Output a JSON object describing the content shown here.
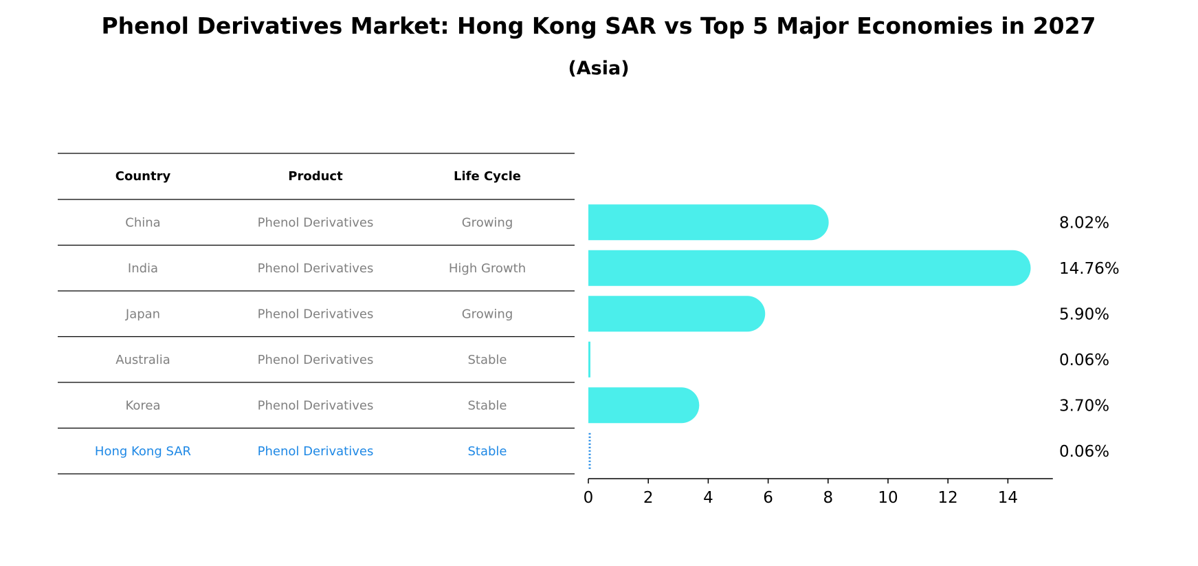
{
  "chart_data": {
    "type": "bar",
    "orientation": "horizontal",
    "title": "Phenol Derivatives Market: Hong Kong SAR vs Top 5 Major Economies in 2027",
    "subtitle": "(Asia)",
    "table": {
      "headers": [
        "Country",
        "Product",
        "Life Cycle"
      ],
      "rows": [
        {
          "country": "China",
          "product": "Phenol Derivatives",
          "life_cycle": "Growing",
          "highlight": false
        },
        {
          "country": "India",
          "product": "Phenol Derivatives",
          "life_cycle": "High Growth",
          "highlight": false
        },
        {
          "country": "Japan",
          "product": "Phenol Derivatives",
          "life_cycle": "Growing",
          "highlight": false
        },
        {
          "country": "Australia",
          "product": "Phenol Derivatives",
          "life_cycle": "Stable",
          "highlight": false
        },
        {
          "country": "Korea",
          "product": "Phenol Derivatives",
          "life_cycle": "Stable",
          "highlight": false
        },
        {
          "country": "Hong Kong SAR",
          "product": "Phenol Derivatives",
          "life_cycle": "Stable",
          "highlight": true
        }
      ]
    },
    "values": [
      8.02,
      14.76,
      5.9,
      0.06,
      3.7,
      0.06
    ],
    "value_labels": [
      "8.02%",
      "14.76%",
      "5.90%",
      "0.06%",
      "3.70%",
      "0.06%"
    ],
    "xlim": [
      0,
      15.5
    ],
    "xticks": [
      0,
      2,
      4,
      6,
      8,
      10,
      12,
      14
    ],
    "grid": false
  },
  "colors": {
    "bar": "#4beeeb",
    "highlight": "#1e88e5",
    "text_muted": "#808080",
    "line": "#000000"
  }
}
